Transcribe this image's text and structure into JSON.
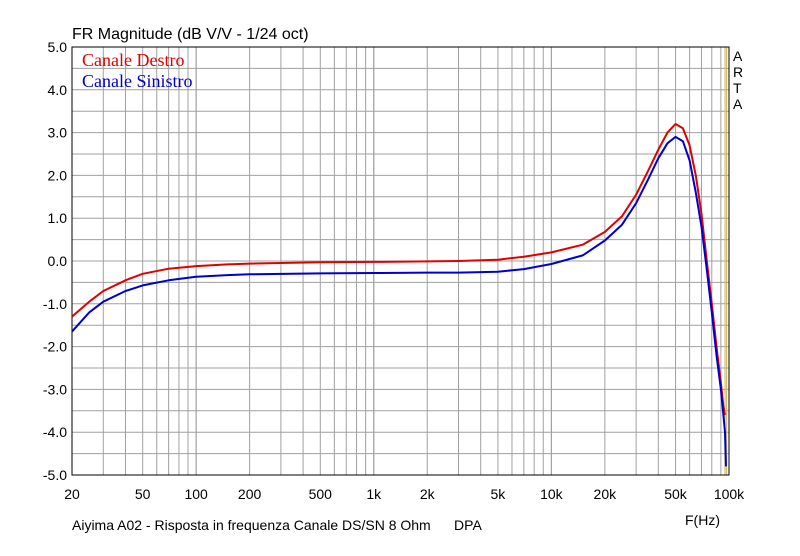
{
  "chart_data": {
    "type": "line",
    "title": "FR Magnitude (dB V/V - 1/24 oct)",
    "xlabel": "F(Hz)",
    "footer": "Aiyima A02 - Risposta in frequenza Canale DS/SN 8 Ohm      DPA",
    "side_label": [
      "A",
      "R",
      "T",
      "A"
    ],
    "x_scale": "log",
    "xlim": [
      20,
      100000
    ],
    "ylim": [
      -5,
      5
    ],
    "x_ticks": [
      {
        "value": 20,
        "label": "20"
      },
      {
        "value": 50,
        "label": "50"
      },
      {
        "value": 100,
        "label": "100"
      },
      {
        "value": 200,
        "label": "200"
      },
      {
        "value": 500,
        "label": "500"
      },
      {
        "value": 1000,
        "label": "1k"
      },
      {
        "value": 2000,
        "label": "2k"
      },
      {
        "value": 5000,
        "label": "5k"
      },
      {
        "value": 10000,
        "label": "10k"
      },
      {
        "value": 20000,
        "label": "20k"
      },
      {
        "value": 50000,
        "label": "50k"
      },
      {
        "value": 100000,
        "label": "100k"
      }
    ],
    "y_ticks": [
      {
        "value": 5,
        "label": "5.0"
      },
      {
        "value": 4,
        "label": "4.0"
      },
      {
        "value": 3,
        "label": "3.0"
      },
      {
        "value": 2,
        "label": "2.0"
      },
      {
        "value": 1,
        "label": "1.0"
      },
      {
        "value": 0,
        "label": "0.0"
      },
      {
        "value": -1,
        "label": "-1.0"
      },
      {
        "value": -2,
        "label": "-2.0"
      },
      {
        "value": -3,
        "label": "-3.0"
      },
      {
        "value": -4,
        "label": "-4.0"
      },
      {
        "value": -5,
        "label": "-5.0"
      }
    ],
    "grid": true,
    "legend_position": "top-left",
    "colors": {
      "grid": "#a0a0a0",
      "marker": "#c8b450"
    },
    "markers_x": [
      95000,
      97000
    ],
    "series": [
      {
        "name": "Canale Destro",
        "color": "#e00000",
        "points": [
          [
            20,
            -1.3
          ],
          [
            25,
            -0.95
          ],
          [
            30,
            -0.7
          ],
          [
            40,
            -0.45
          ],
          [
            50,
            -0.3
          ],
          [
            70,
            -0.18
          ],
          [
            100,
            -0.12
          ],
          [
            150,
            -0.08
          ],
          [
            200,
            -0.06
          ],
          [
            500,
            -0.03
          ],
          [
            1000,
            -0.02
          ],
          [
            2000,
            -0.01
          ],
          [
            3000,
            0.0
          ],
          [
            5000,
            0.03
          ],
          [
            7000,
            0.1
          ],
          [
            10000,
            0.2
          ],
          [
            15000,
            0.38
          ],
          [
            20000,
            0.68
          ],
          [
            25000,
            1.05
          ],
          [
            30000,
            1.55
          ],
          [
            35000,
            2.1
          ],
          [
            40000,
            2.6
          ],
          [
            45000,
            3.0
          ],
          [
            50000,
            3.2
          ],
          [
            55000,
            3.1
          ],
          [
            60000,
            2.7
          ],
          [
            65000,
            2.0
          ],
          [
            70000,
            1.1
          ],
          [
            75000,
            0.0
          ],
          [
            80000,
            -1.0
          ],
          [
            85000,
            -2.0
          ],
          [
            90000,
            -2.85
          ],
          [
            93000,
            -3.4
          ],
          [
            95000,
            -3.6
          ]
        ]
      },
      {
        "name": "Canale Sinistro",
        "color": "#0000cc",
        "points": [
          [
            20,
            -1.65
          ],
          [
            25,
            -1.2
          ],
          [
            30,
            -0.95
          ],
          [
            40,
            -0.7
          ],
          [
            50,
            -0.57
          ],
          [
            70,
            -0.45
          ],
          [
            100,
            -0.37
          ],
          [
            150,
            -0.33
          ],
          [
            200,
            -0.31
          ],
          [
            500,
            -0.29
          ],
          [
            1000,
            -0.28
          ],
          [
            2000,
            -0.27
          ],
          [
            3000,
            -0.27
          ],
          [
            5000,
            -0.25
          ],
          [
            7000,
            -0.19
          ],
          [
            10000,
            -0.07
          ],
          [
            15000,
            0.13
          ],
          [
            20000,
            0.48
          ],
          [
            25000,
            0.85
          ],
          [
            30000,
            1.35
          ],
          [
            35000,
            1.9
          ],
          [
            40000,
            2.4
          ],
          [
            45000,
            2.75
          ],
          [
            50000,
            2.9
          ],
          [
            55000,
            2.8
          ],
          [
            60000,
            2.35
          ],
          [
            65000,
            1.6
          ],
          [
            70000,
            0.8
          ],
          [
            75000,
            -0.2
          ],
          [
            80000,
            -1.2
          ],
          [
            85000,
            -2.2
          ],
          [
            90000,
            -3.0
          ],
          [
            93000,
            -3.6
          ],
          [
            95000,
            -4.0
          ],
          [
            96000,
            -4.8
          ]
        ]
      }
    ]
  }
}
